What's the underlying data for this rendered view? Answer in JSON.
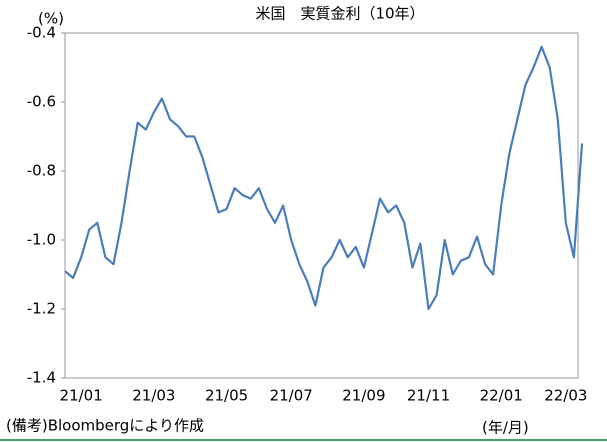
{
  "chart_data": {
    "type": "line",
    "title": "米国　実質金利（10年）",
    "y_unit": "(%)",
    "x_unit": "(年/月)",
    "note": "(備考)Bloombergにより作成",
    "color": "#4a7ebb",
    "categories": [
      null,
      null,
      "21/01",
      null,
      null,
      null,
      null,
      null,
      null,
      null,
      null,
      "21/03",
      null,
      null,
      null,
      null,
      null,
      null,
      null,
      null,
      "21/05",
      null,
      null,
      null,
      null,
      null,
      null,
      null,
      "21/07",
      null,
      null,
      null,
      null,
      null,
      null,
      null,
      null,
      "21/09",
      null,
      null,
      null,
      null,
      null,
      null,
      null,
      "21/11",
      null,
      null,
      null,
      null,
      null,
      null,
      null,
      null,
      "22/01",
      null,
      null,
      null,
      null,
      null,
      null,
      null,
      "22/03",
      null,
      null
    ],
    "values": [
      -1.09,
      -1.11,
      -1.05,
      -0.97,
      -0.95,
      -1.05,
      -1.07,
      -0.95,
      -0.8,
      -0.66,
      -0.68,
      -0.63,
      -0.59,
      -0.65,
      -0.67,
      -0.7,
      -0.7,
      -0.76,
      -0.84,
      -0.92,
      -0.91,
      -0.85,
      -0.87,
      -0.88,
      -0.85,
      -0.91,
      -0.95,
      -0.9,
      -1.0,
      -1.07,
      -1.12,
      -1.19,
      -1.08,
      -1.05,
      -1.0,
      -1.05,
      -1.02,
      -1.08,
      -0.98,
      -0.88,
      -0.92,
      -0.9,
      -0.95,
      -1.08,
      -1.01,
      -1.2,
      -1.16,
      -1.0,
      -1.1,
      -1.06,
      -1.05,
      -0.99,
      -1.07,
      -1.1,
      -0.9,
      -0.75,
      -0.65,
      -0.55,
      -0.5,
      -0.44,
      -0.5,
      -0.65,
      -0.95,
      -1.05,
      -0.72
    ],
    "ylim": [
      -1.4,
      -0.4
    ],
    "yticks": [
      -0.4,
      -0.6,
      -0.8,
      {
        "value": -1.0,
        "label": "-1.0"
      },
      -1.2,
      -1.4
    ],
    "grid": false
  }
}
